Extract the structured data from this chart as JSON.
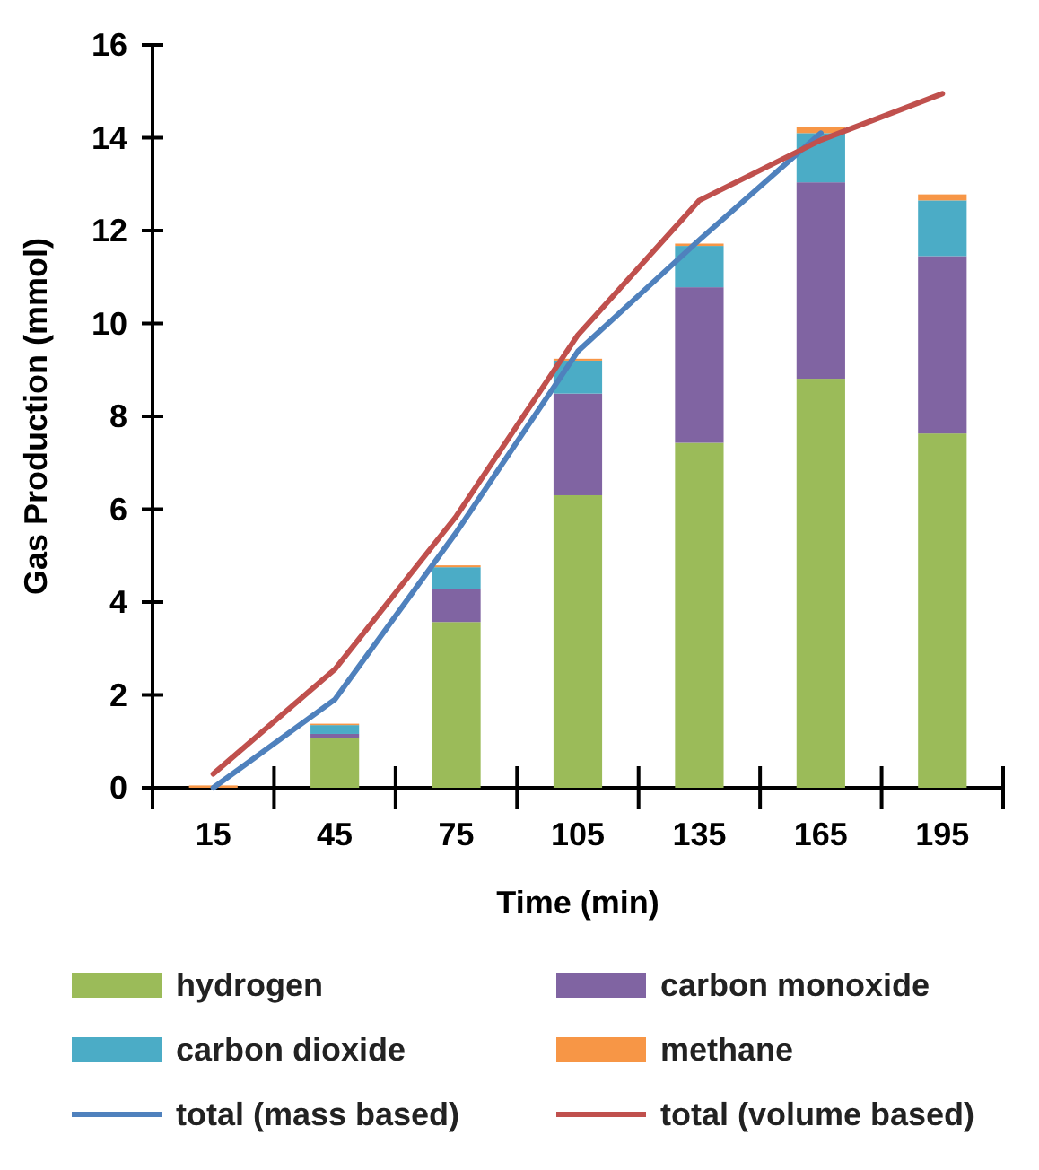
{
  "chart_data": {
    "type": "bar",
    "stacked": true,
    "xlabel": "Time (min)",
    "ylabel": "Gas Production (mmol)",
    "categories": [
      "15",
      "45",
      "75",
      "105",
      "135",
      "165",
      "195"
    ],
    "ylim": [
      0,
      16
    ],
    "yticks": [
      0,
      2,
      4,
      6,
      8,
      10,
      12,
      14,
      16
    ],
    "grid": false,
    "legend": "bottom",
    "series": [
      {
        "name": "hydrogen",
        "color": "#9bbb59",
        "values": [
          0,
          1.08,
          3.57,
          6.3,
          7.43,
          8.81,
          7.63
        ]
      },
      {
        "name": "carbon monoxide",
        "color": "#8064a2",
        "values": [
          0,
          0.08,
          0.71,
          2.19,
          3.35,
          4.23,
          3.82
        ]
      },
      {
        "name": "carbon dioxide",
        "color": "#4bacc6",
        "values": [
          0,
          0.19,
          0.47,
          0.71,
          0.89,
          1.06,
          1.2
        ]
      },
      {
        "name": "methane",
        "color": "#f79646",
        "values": [
          0.05,
          0.03,
          0.04,
          0.04,
          0.05,
          0.13,
          0.13
        ]
      },
      {
        "name": "total (mass based)",
        "type": "line",
        "color": "#4f81bd",
        "values": [
          0,
          1.9,
          5.5,
          9.4,
          11.8,
          14.1,
          null
        ]
      },
      {
        "name": "total (volume based)",
        "type": "line",
        "color": "#c0504d",
        "values": [
          0.3,
          2.55,
          5.85,
          9.75,
          12.65,
          13.95,
          14.95
        ]
      }
    ]
  }
}
